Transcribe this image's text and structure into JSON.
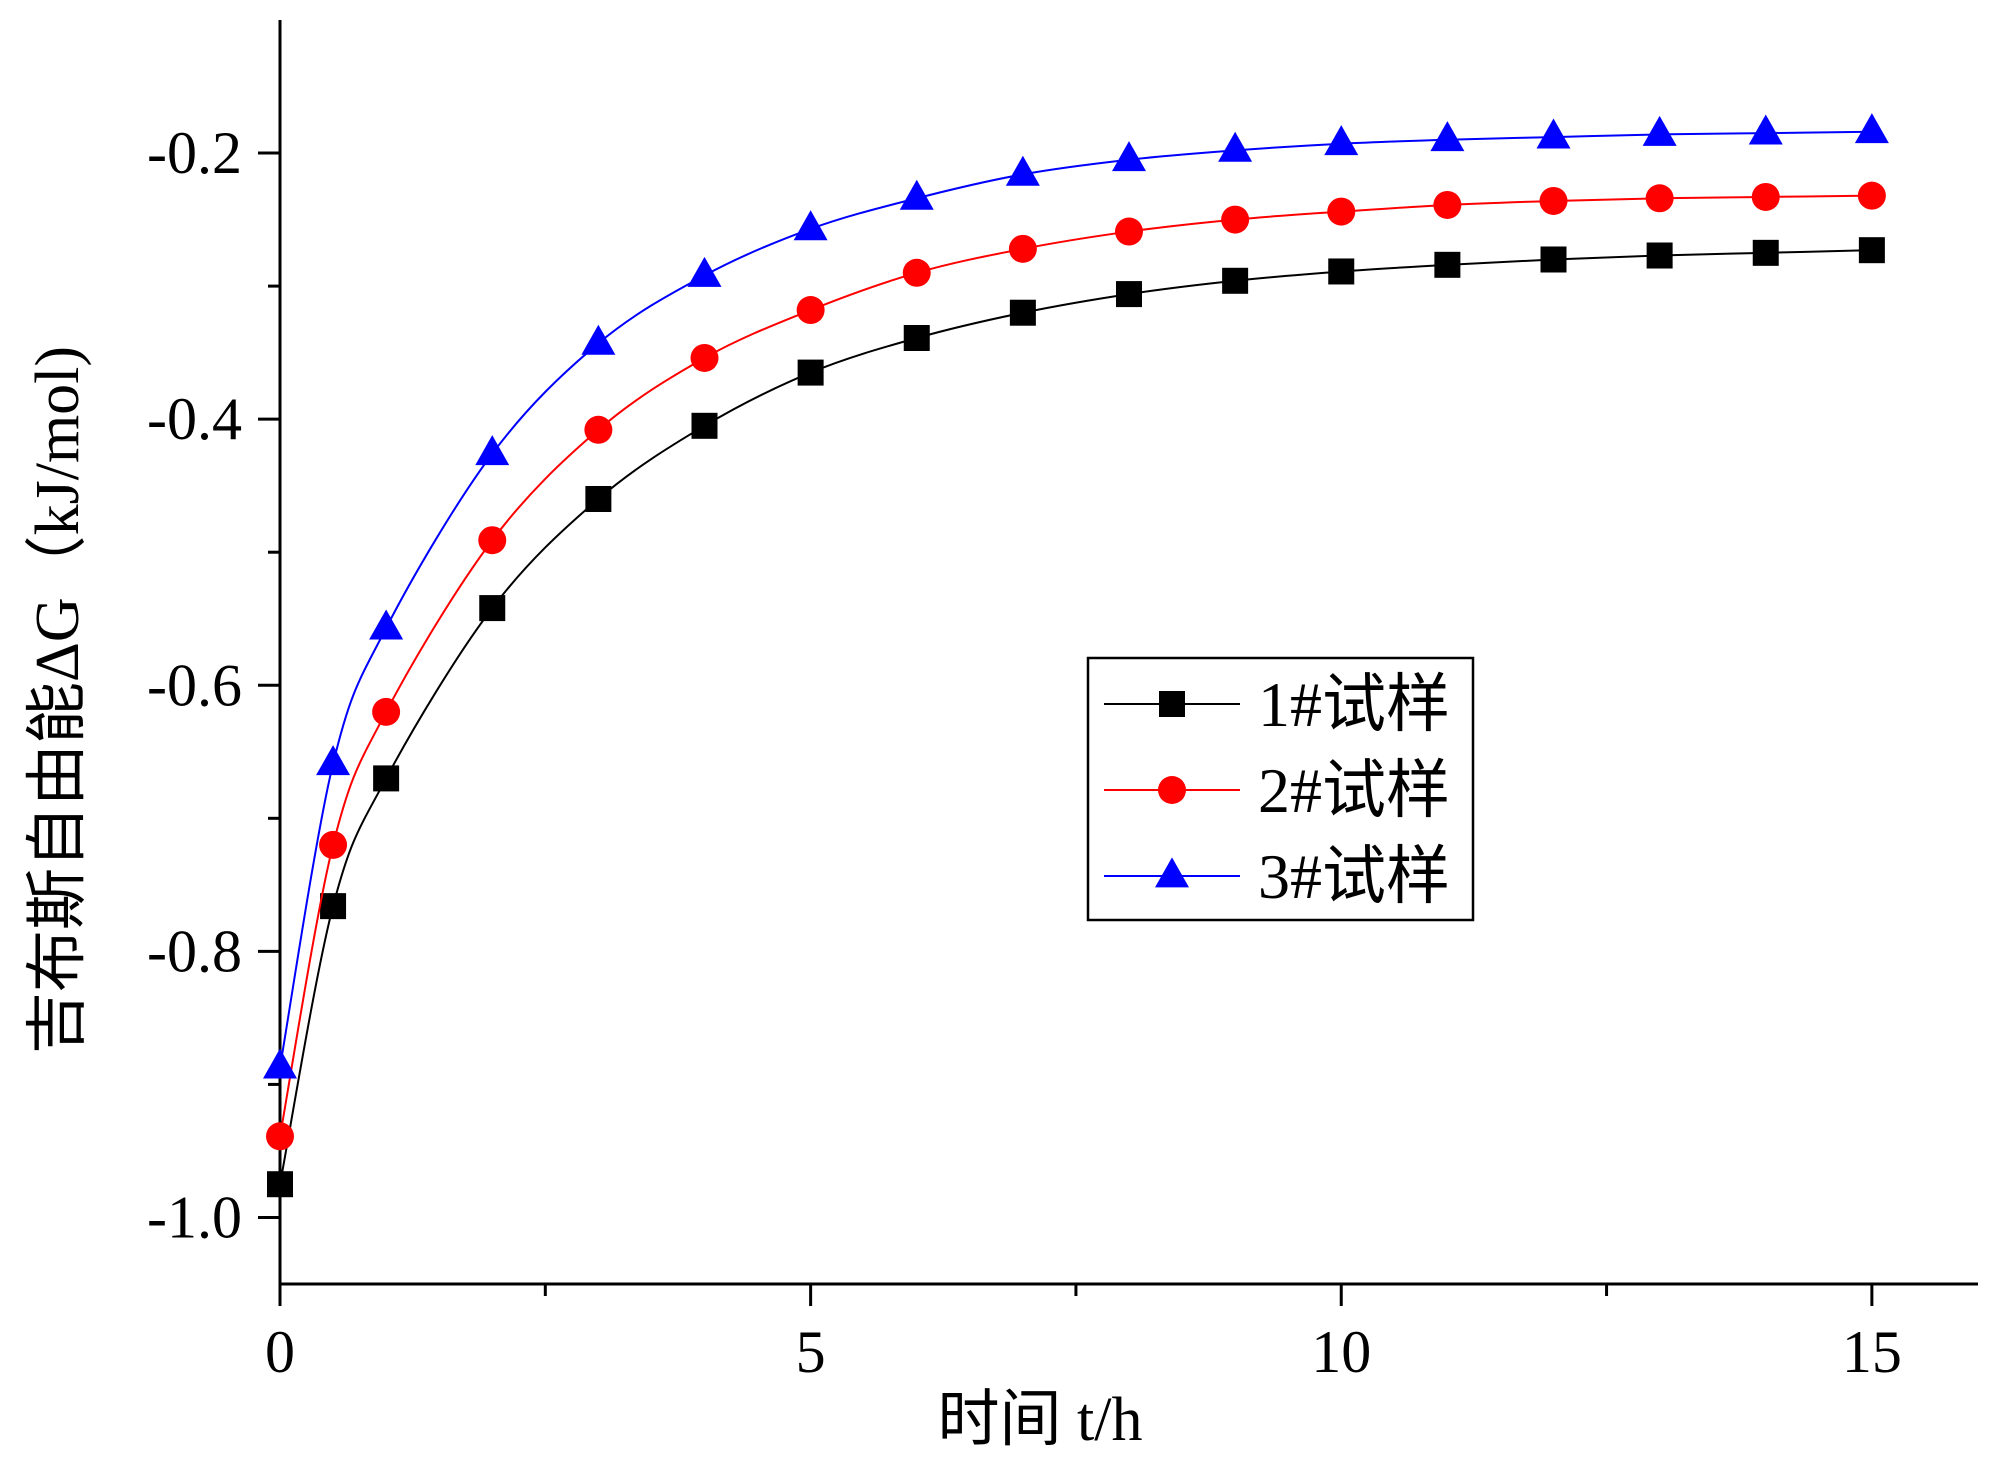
{
  "chart_data": {
    "type": "line",
    "title": "",
    "xlabel": "时间 t/h",
    "ylabel": "吉布斯自由能ΔG（kJ/mol)",
    "xlim": [
      0,
      16
    ],
    "ylim": [
      -1.05,
      -0.1
    ],
    "xticks": [
      0,
      5,
      10,
      15
    ],
    "xtick_labels": [
      "0",
      "5",
      "10",
      "15"
    ],
    "xminor_ticks": [
      2.5,
      7.5,
      12.5
    ],
    "yticks": [
      -1.0,
      -0.8,
      -0.6,
      -0.4,
      -0.2
    ],
    "ytick_labels": [
      "-1.0",
      "-0.8",
      "-0.6",
      "-0.4",
      "-0.2"
    ],
    "yminor_ticks": [
      -0.9,
      -0.7,
      -0.5,
      -0.3
    ],
    "grid": false,
    "legend_position": "center-right",
    "x": [
      0,
      0.5,
      1,
      2,
      3,
      4,
      5,
      6,
      7,
      8,
      9,
      10,
      11,
      12,
      13,
      14,
      15
    ],
    "series": [
      {
        "name": "1#试样",
        "color": "#000000",
        "marker": "square",
        "values": [
          -0.975,
          -0.766,
          -0.67,
          -0.542,
          -0.46,
          -0.405,
          -0.365,
          -0.339,
          -0.32,
          -0.306,
          -0.296,
          -0.289,
          -0.284,
          -0.28,
          -0.277,
          -0.275,
          -0.273
        ]
      },
      {
        "name": "2#试样",
        "color": "#ff0000",
        "marker": "circle",
        "values": [
          -0.939,
          -0.72,
          -0.62,
          -0.491,
          -0.408,
          -0.354,
          -0.318,
          -0.29,
          -0.272,
          -0.259,
          -0.25,
          -0.244,
          -0.239,
          -0.236,
          -0.234,
          -0.233,
          -0.232
        ]
      },
      {
        "name": "3#试样",
        "color": "#0000ff",
        "marker": "triangle",
        "values": [
          -0.887,
          -0.659,
          -0.557,
          -0.426,
          -0.343,
          -0.292,
          -0.257,
          -0.234,
          -0.216,
          -0.205,
          -0.198,
          -0.193,
          -0.19,
          -0.188,
          -0.186,
          -0.185,
          -0.184
        ]
      }
    ]
  }
}
